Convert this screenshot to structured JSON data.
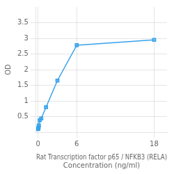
{
  "chart_data": {
    "type": "line",
    "xlabel": [
      "Rat Transcription factor p65 / NFKB3 (RELA)",
      "Concentration (ng/ml)"
    ],
    "ylabel": "OD",
    "x": [
      0,
      0.041,
      0.082,
      0.123,
      0.247,
      0.494,
      1.235,
      3.0,
      6.0,
      18.0
    ],
    "values": [
      0.105,
      0.12,
      0.16,
      0.22,
      0.38,
      0.44,
      0.8,
      1.65,
      2.78,
      2.95
    ],
    "xlim": [
      -0.3,
      20
    ],
    "xticks": [
      0,
      6,
      18
    ],
    "ylim": [
      0,
      4.0
    ],
    "yticks": [
      0.5,
      1.0,
      1.5,
      2.0,
      2.5,
      3.0,
      3.5
    ],
    "grid": true,
    "marker": "square"
  }
}
